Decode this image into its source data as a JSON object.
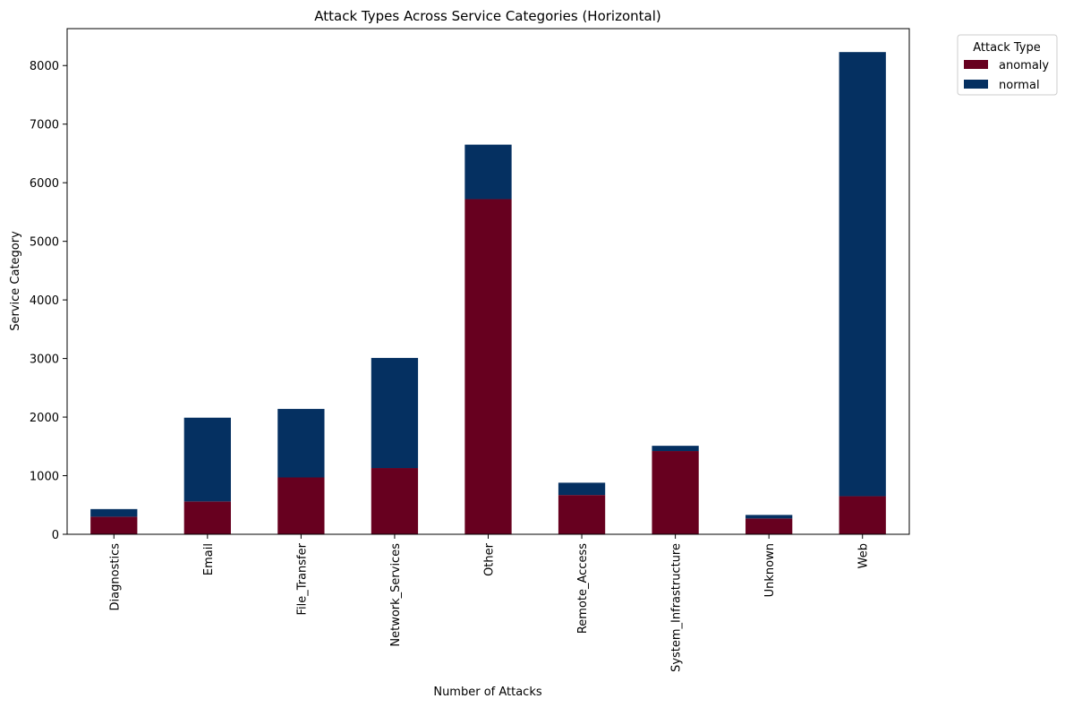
{
  "chart_data": {
    "type": "bar",
    "stacked": true,
    "title": "Attack Types Across Service Categories (Horizontal)",
    "xlabel": "Number of Attacks",
    "ylabel": "Service Category",
    "categories": [
      "Diagnostics",
      "Email",
      "File_Transfer",
      "Network_Services",
      "Other",
      "Remote_Access",
      "System_Infrastructure",
      "Unknown",
      "Web"
    ],
    "series": [
      {
        "name": "anomaly",
        "color": "#67001f",
        "values": [
          300,
          560,
          970,
          1130,
          5720,
          670,
          1420,
          270,
          650
        ]
      },
      {
        "name": "normal",
        "color": "#053061",
        "values": [
          130,
          1430,
          1170,
          1880,
          930,
          210,
          90,
          60,
          7580
        ]
      }
    ],
    "ylim": [
      0,
      8630
    ],
    "yticks": [
      0,
      1000,
      2000,
      3000,
      4000,
      5000,
      6000,
      7000,
      8000
    ],
    "legend": {
      "title": "Attack Type",
      "position": "outside-top-right"
    },
    "grid": false
  }
}
